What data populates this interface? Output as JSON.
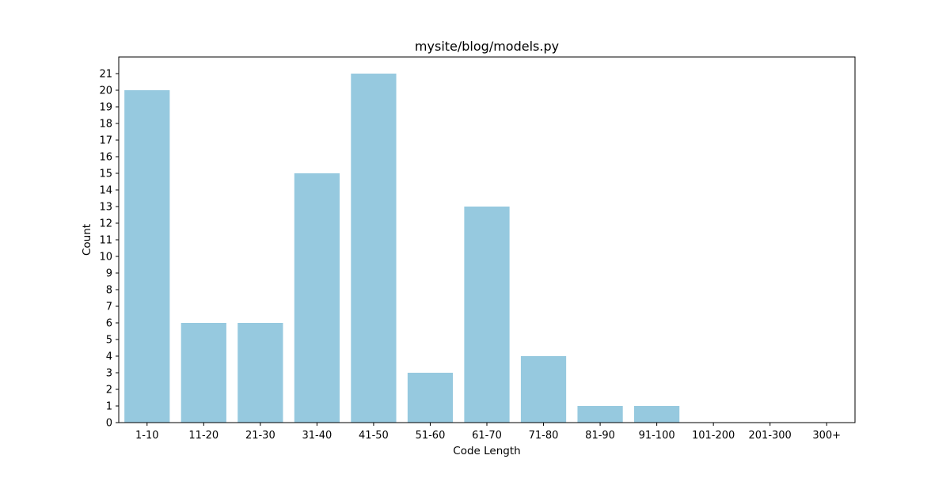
{
  "chart_data": {
    "type": "bar",
    "title": "mysite/blog/models.py",
    "xlabel": "Code Length",
    "ylabel": "Count",
    "categories": [
      "1-10",
      "11-20",
      "21-30",
      "31-40",
      "41-50",
      "51-60",
      "61-70",
      "71-80",
      "81-90",
      "91-100",
      "101-200",
      "201-300",
      "300+"
    ],
    "values": [
      20,
      6,
      6,
      15,
      21,
      3,
      13,
      4,
      1,
      1,
      0,
      0,
      0
    ],
    "ylim": [
      0,
      22
    ],
    "yticks": [
      0,
      1,
      2,
      3,
      4,
      5,
      6,
      7,
      8,
      9,
      10,
      11,
      12,
      13,
      14,
      15,
      16,
      17,
      18,
      19,
      20,
      21
    ],
    "bar_color": "#96c9df",
    "grid": false,
    "legend": "none"
  }
}
